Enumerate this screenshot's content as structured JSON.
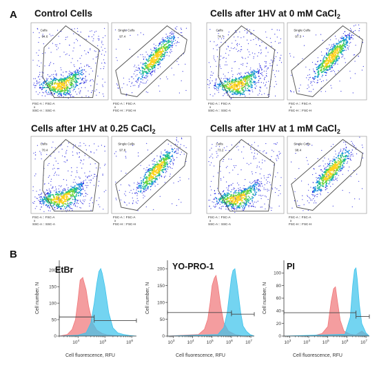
{
  "panel_labels": {
    "a": "A",
    "b": "B"
  },
  "colors": {
    "red": "#f0777a",
    "cyan": "#3dc3ec",
    "overlap": "#8f8fa0",
    "gate": "#4d4d4d",
    "dot": "#2c2ce0"
  },
  "chart_data": [
    {
      "type": "scatter",
      "group": "density-plot-group",
      "title_parts": [
        "Control Cells",
        "",
        ""
      ],
      "plots": [
        {
          "gate_name": "Cells",
          "gate_value": "94.6",
          "xlabel": "FSC-A :: FSC-A",
          "xsep": "x",
          "ylabel": "SSC-A :: SSC-A"
        },
        {
          "gate_name": "Single Cells",
          "gate_value": "97.4",
          "xlabel": "FSC-A :: FSC-A",
          "xsep": "x",
          "ylabel": "FSC-H :: FSC-H"
        }
      ]
    },
    {
      "type": "scatter",
      "group": "density-plot-group",
      "title_parts": [
        "Cells after 1HV at 0 mM CaCl",
        "2",
        ""
      ],
      "plots": [
        {
          "gate_name": "Cells",
          "gate_value": "74.7",
          "xlabel": "FSC-A :: FSC-A",
          "xsep": "x",
          "ylabel": "SSC-A :: SSC-A"
        },
        {
          "gate_name": "Single Cells",
          "gate_value": "97.3",
          "xlabel": "FSC-A :: FSC-A",
          "xsep": "x",
          "ylabel": "FSC-H :: FSC-H"
        }
      ]
    },
    {
      "type": "scatter",
      "group": "density-plot-group",
      "title_parts": [
        "Cells after 1HV at 0.25 CaCl",
        "2",
        ""
      ],
      "plots": [
        {
          "gate_name": "Cells",
          "gate_value": "70.4",
          "xlabel": "FSC-A :: FSC-A",
          "xsep": "x",
          "ylabel": "SSC-A :: SSC-A"
        },
        {
          "gate_name": "Single Cells",
          "gate_value": "97.8",
          "xlabel": "FSC-A :: FSC-A",
          "xsep": "x",
          "ylabel": "FSC-H :: FSC-H"
        }
      ]
    },
    {
      "type": "scatter",
      "group": "density-plot-group",
      "title_parts": [
        "Cells after 1HV at 1 mM CaCl",
        "2",
        ""
      ],
      "plots": [
        {
          "gate_name": "Cells",
          "gate_value": "73.2",
          "xlabel": "FSC-A :: FSC-A",
          "xsep": "x",
          "ylabel": "SSC-A :: SSC-A"
        },
        {
          "gate_name": "Single Cells",
          "gate_value": "98.4",
          "xlabel": "FSC-A :: FSC-A",
          "xsep": "x",
          "ylabel": "FSC-H :: FSC-H"
        }
      ]
    },
    {
      "type": "area",
      "title": "EtBr",
      "xlabel": "Cell fluorescence, RFU",
      "ylabel": "Cell number, N",
      "x_scale": "log",
      "xlim": [
        2000,
        1500000
      ],
      "ylim": [
        0,
        230
      ],
      "yticks": [
        0,
        50,
        100,
        150,
        200
      ],
      "xticks": [
        10000,
        100000,
        1000000
      ],
      "xtick_labels": [
        [
          "10",
          "4"
        ],
        [
          "10",
          "5"
        ],
        [
          "10",
          "6"
        ]
      ],
      "gate_bars": [
        {
          "x": [
            2000,
            40000
          ],
          "y": 58
        },
        {
          "x": [
            40000,
            1500000
          ],
          "y": 47
        }
      ],
      "series": [
        {
          "color": "red",
          "x": [
            2000,
            4000,
            6000,
            8000,
            10000,
            12000,
            15000,
            20000,
            25000,
            35000,
            50000,
            80000,
            120000,
            200000,
            400000,
            1500000
          ],
          "y": [
            0,
            5,
            20,
            50,
            110,
            170,
            178,
            140,
            90,
            40,
            18,
            8,
            4,
            2,
            0,
            0
          ]
        },
        {
          "color": "cyan",
          "x": [
            2000,
            10000,
            20000,
            30000,
            40000,
            50000,
            60000,
            70000,
            80000,
            100000,
            140000,
            200000,
            300000,
            500000,
            800000,
            1500000
          ],
          "y": [
            0,
            3,
            10,
            40,
            100,
            160,
            196,
            205,
            190,
            150,
            70,
            25,
            10,
            5,
            2,
            0
          ]
        }
      ]
    },
    {
      "type": "area",
      "title": "YO-PRO-1",
      "xlabel": "Cell fluorescence, RFU",
      "ylabel": "Cell number, N",
      "x_scale": "log",
      "xlim": [
        500,
        15000000
      ],
      "ylim": [
        0,
        225
      ],
      "yticks": [
        0,
        50,
        100,
        150,
        200
      ],
      "xticks": [
        1000,
        10000,
        100000,
        1000000,
        10000000
      ],
      "xtick_labels": [
        [
          "10",
          "3"
        ],
        [
          "10",
          "4"
        ],
        [
          "10",
          "5"
        ],
        [
          "10",
          "6"
        ],
        [
          "10",
          "7"
        ]
      ],
      "gate_bars": [
        {
          "x": [
            500,
            1000000
          ],
          "y": 70
        },
        {
          "x": [
            1000000,
            15000000
          ],
          "y": 65
        }
      ],
      "series": [
        {
          "color": "red",
          "x": [
            500,
            20000,
            40000,
            60000,
            80000,
            100000,
            130000,
            160000,
            200000,
            280000,
            400000,
            700000,
            1500000,
            4000000,
            15000000
          ],
          "y": [
            0,
            5,
            20,
            50,
            100,
            150,
            172,
            180,
            150,
            90,
            40,
            15,
            5,
            0,
            0
          ]
        },
        {
          "color": "cyan",
          "x": [
            500,
            200000,
            400000,
            600000,
            800000,
            1000000,
            1200000,
            1500000,
            2000000,
            3000000,
            4000000,
            6000000,
            9000000,
            15000000
          ],
          "y": [
            0,
            5,
            25,
            70,
            130,
            175,
            195,
            200,
            150,
            70,
            30,
            14,
            5,
            0
          ]
        }
      ]
    },
    {
      "type": "area",
      "title": "PI",
      "xlabel": "Cell fluorescence, RFU",
      "ylabel": "Cell number, N",
      "x_scale": "log",
      "xlim": [
        500,
        15000000
      ],
      "ylim": [
        0,
        120
      ],
      "yticks": [
        0,
        20,
        40,
        60,
        80,
        100
      ],
      "xticks": [
        1000,
        10000,
        100000,
        1000000,
        10000000
      ],
      "xtick_labels": [
        [
          "10",
          "3"
        ],
        [
          "10",
          "4"
        ],
        [
          "10",
          "5"
        ],
        [
          "10",
          "6"
        ],
        [
          "10",
          "7"
        ]
      ],
      "gate_bars": [
        {
          "x": [
            500,
            3000000
          ],
          "y": 37
        },
        {
          "x": [
            3000000,
            15000000
          ],
          "y": 31
        }
      ],
      "series": [
        {
          "color": "red",
          "x": [
            500,
            20000,
            50000,
            100000,
            150000,
            200000,
            250000,
            320000,
            450000,
            700000,
            1500000,
            3000000,
            6000000,
            10000000,
            15000000
          ],
          "y": [
            0,
            1,
            4,
            15,
            55,
            75,
            78,
            55,
            25,
            8,
            3,
            2,
            8,
            3,
            0
          ]
        },
        {
          "color": "cyan",
          "x": [
            500,
            800000,
            1500000,
            2000000,
            2500000,
            3000000,
            3500000,
            4500000,
            6000000,
            10000000,
            15000000
          ],
          "y": [
            0,
            3,
            30,
            80,
            105,
            108,
            90,
            50,
            20,
            5,
            0
          ]
        }
      ]
    }
  ]
}
